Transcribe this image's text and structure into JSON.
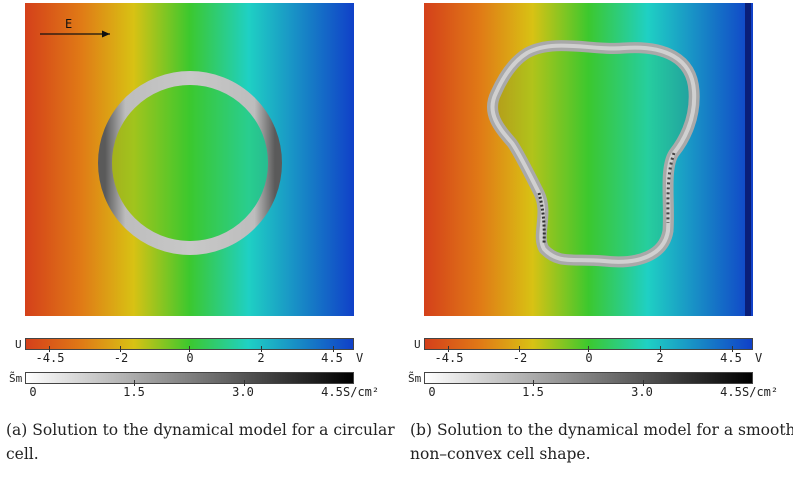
{
  "figure": {
    "panels": [
      {
        "id": "a",
        "field_label": "E",
        "caption": "(a) Solution to the dynamical model for a circular cell."
      },
      {
        "id": "b",
        "caption": "(b) Solution to the dynamical model for a smooth non–convex cell shape."
      }
    ],
    "potential_legend": {
      "symbol": "U",
      "unit": "V",
      "ticks": [
        "-4.5",
        "-2",
        "0",
        "2",
        "4.5"
      ],
      "range": [
        -4.5,
        4.5
      ],
      "colors": [
        "#d4401a",
        "#e07a16",
        "#d8c214",
        "#3cc82e",
        "#1fd0c4",
        "#1040c8"
      ]
    },
    "conductivity_legend": {
      "symbol": "S̃m",
      "unit": "S/cm²",
      "ticks": [
        "0",
        "1.5",
        "3.0",
        "4.5"
      ],
      "range": [
        0,
        4.5
      ],
      "colors": [
        "#ffffff",
        "#000000"
      ]
    }
  }
}
